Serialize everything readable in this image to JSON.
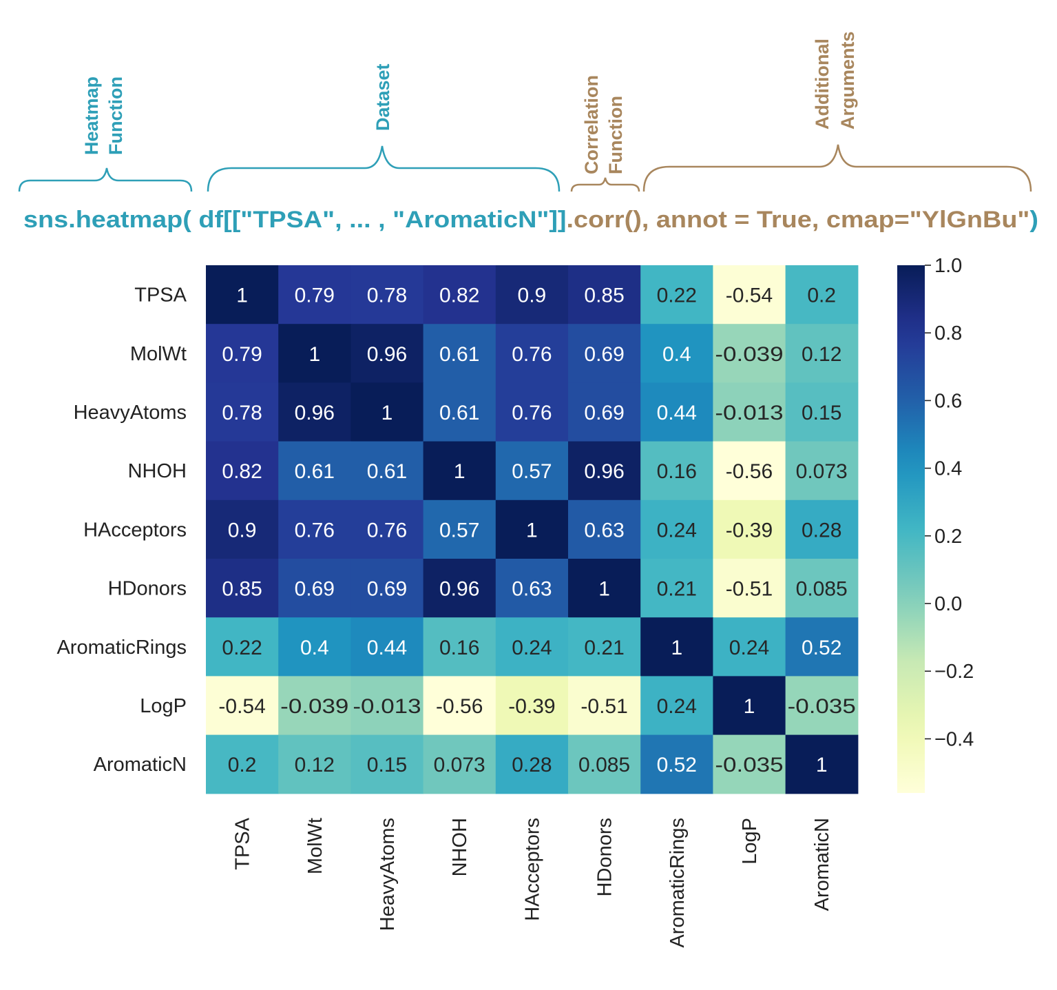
{
  "annotations": {
    "heatmap_function": [
      "Heatmap",
      "Function"
    ],
    "dataset": "Dataset",
    "correlation_function": [
      "Correlation",
      "Function"
    ],
    "additional_arguments": [
      "Additional",
      "Arguments"
    ]
  },
  "code_line": {
    "part1": "sns.heatmap( df[[\"TPSA\", ... , \"AromaticN\"]]",
    "part2": ".corr(),",
    "part3": " annot = True,  cmap=\"YlGnBu\"",
    "part4": ")"
  },
  "colors": {
    "teal": "#2e9fb7",
    "tan": "#a8865d"
  },
  "chart_data": {
    "type": "heatmap",
    "colormap": "YlGnBu",
    "vmin": -0.56,
    "vmax": 1.0,
    "rows": [
      "TPSA",
      "MolWt",
      "HeavyAtoms",
      "NHOH",
      "HAcceptors",
      "HDonors",
      "AromaticRings",
      "LogP",
      "AromaticN"
    ],
    "cols": [
      "TPSA",
      "MolWt",
      "HeavyAtoms",
      "NHOH",
      "HAcceptors",
      "HDonors",
      "AromaticRings",
      "LogP",
      "AromaticN"
    ],
    "values": [
      [
        1,
        0.79,
        0.78,
        0.82,
        0.9,
        0.85,
        0.22,
        -0.54,
        0.2
      ],
      [
        0.79,
        1,
        0.96,
        0.61,
        0.76,
        0.69,
        0.4,
        -0.039,
        0.12
      ],
      [
        0.78,
        0.96,
        1,
        0.61,
        0.76,
        0.69,
        0.44,
        -0.013,
        0.15
      ],
      [
        0.82,
        0.61,
        0.61,
        1,
        0.57,
        0.96,
        0.16,
        -0.56,
        0.073
      ],
      [
        0.9,
        0.76,
        0.76,
        0.57,
        1,
        0.63,
        0.24,
        -0.39,
        0.28
      ],
      [
        0.85,
        0.69,
        0.69,
        0.96,
        0.63,
        1,
        0.21,
        -0.51,
        0.085
      ],
      [
        0.22,
        0.4,
        0.44,
        0.16,
        0.24,
        0.21,
        1,
        0.24,
        0.52
      ],
      [
        -0.54,
        -0.039,
        -0.013,
        -0.56,
        -0.39,
        -0.51,
        0.24,
        1,
        -0.035
      ],
      [
        0.2,
        0.12,
        0.15,
        0.073,
        0.28,
        0.085,
        0.52,
        -0.035,
        1
      ]
    ],
    "colorbar_ticks": [
      {
        "value": 1.0,
        "label": "1.0"
      },
      {
        "value": 0.8,
        "label": "0.8"
      },
      {
        "value": 0.6,
        "label": "0.6"
      },
      {
        "value": 0.4,
        "label": "0.4"
      },
      {
        "value": 0.2,
        "label": "0.2"
      },
      {
        "value": 0.0,
        "label": "0.0"
      },
      {
        "value": -0.2,
        "label": "−0.2"
      },
      {
        "value": -0.4,
        "label": "−0.4"
      }
    ]
  }
}
